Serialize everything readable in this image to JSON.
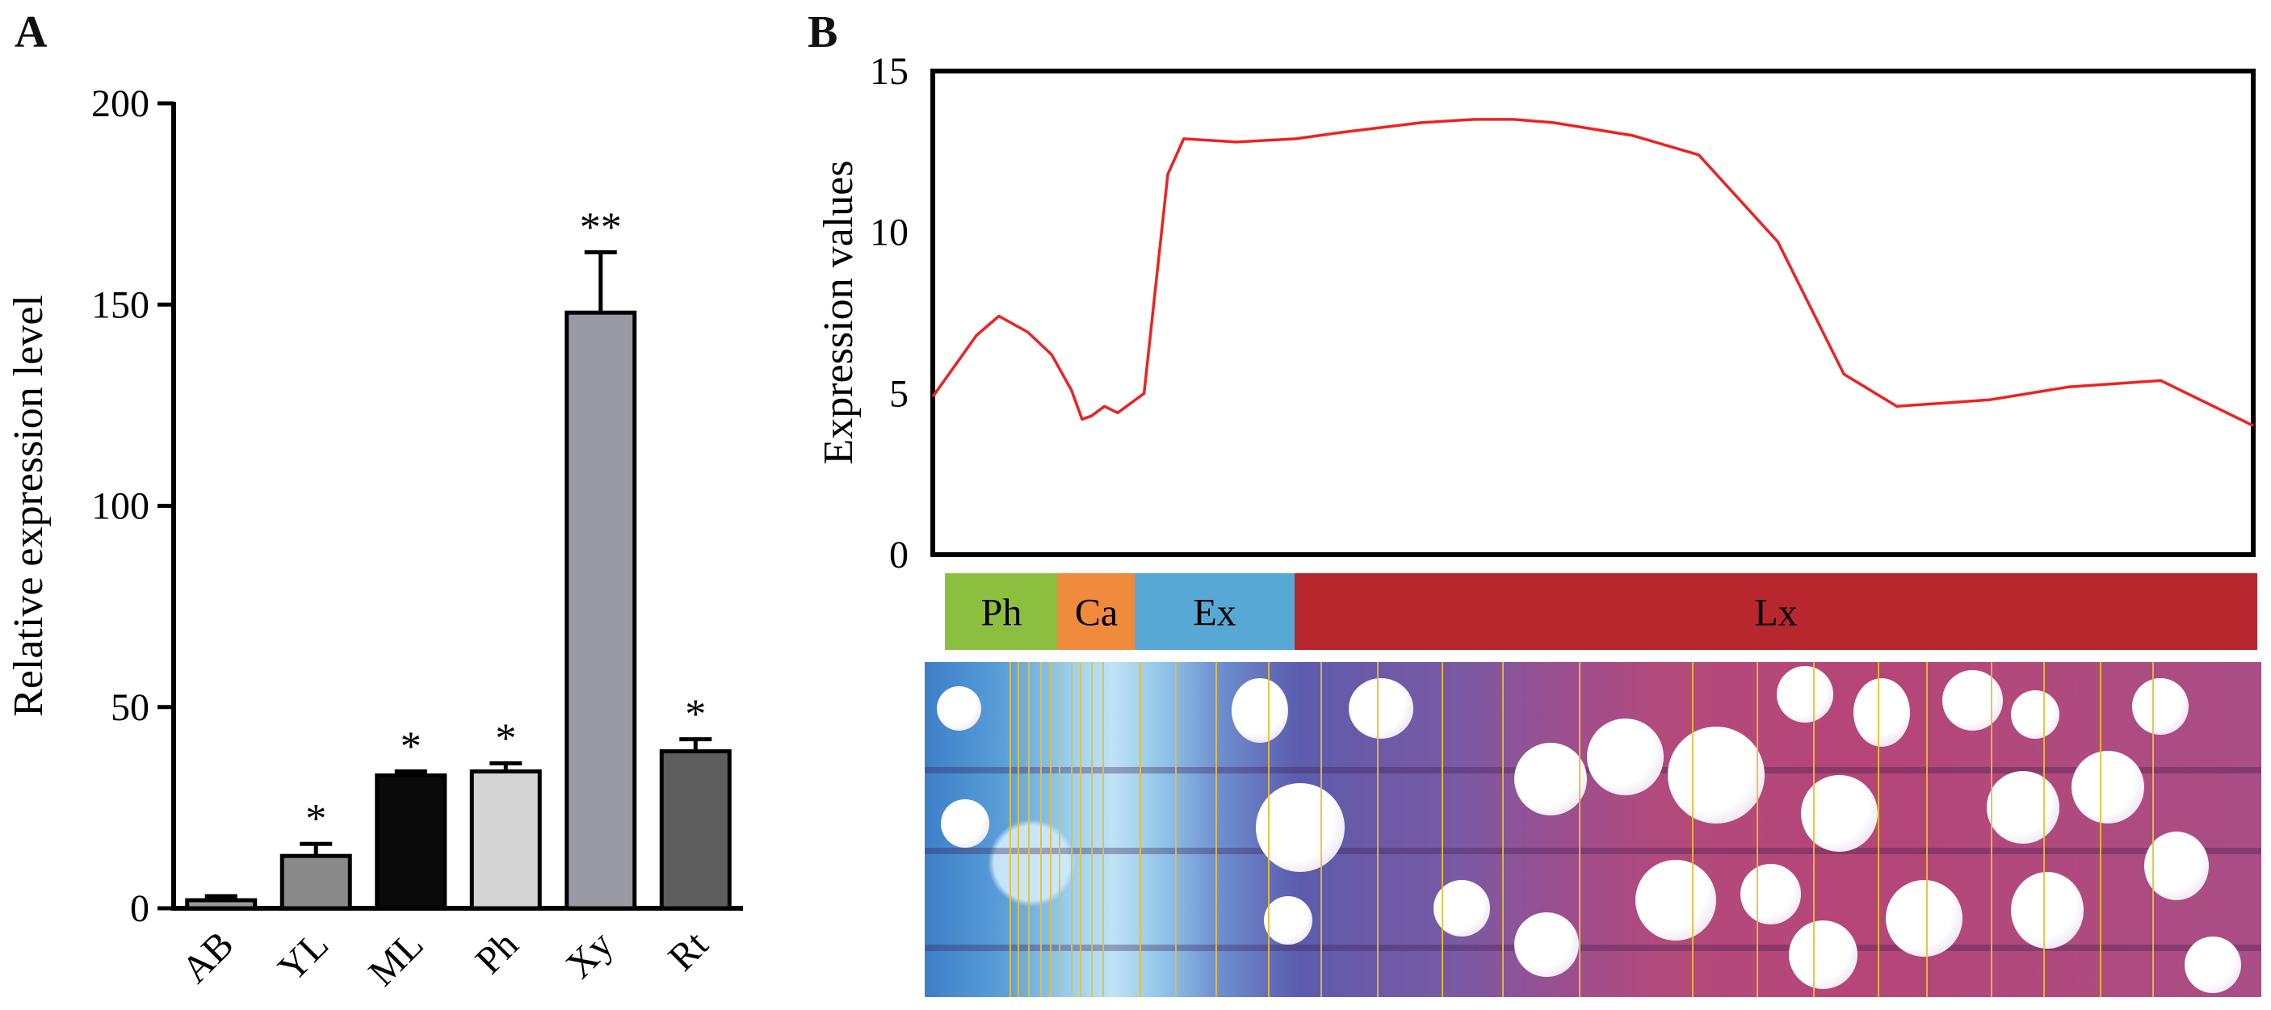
{
  "panel_labels": {
    "a": "A",
    "b": "B"
  },
  "chart_data": [
    {
      "type": "bar",
      "panel": "A",
      "title": "",
      "xlabel": "",
      "ylabel": "Relative expression level",
      "ylim": [
        0,
        200
      ],
      "yticks": [
        0,
        50,
        100,
        150,
        200
      ],
      "categories": [
        "AB",
        "YL",
        "ML",
        "Ph",
        "Xy",
        "Rt"
      ],
      "values": [
        2,
        13,
        33,
        34,
        148,
        39
      ],
      "errors": [
        1,
        3,
        1,
        2,
        15,
        3
      ],
      "significance": [
        "",
        "*",
        "*",
        "*",
        "**",
        "*"
      ],
      "colors": [
        "#9a9a9a",
        "#8a8a8a",
        "#0a0a0a",
        "#d4d4d4",
        "#999aa2",
        "#5e5e5e"
      ]
    },
    {
      "type": "line",
      "panel": "B",
      "title": "",
      "xlabel": "",
      "ylabel": "Expression values",
      "ylim": [
        0,
        15
      ],
      "yticks": [
        0,
        5,
        10,
        15
      ],
      "xlim": [
        0,
        100
      ],
      "x": [
        0,
        3.3,
        5,
        7.2,
        9,
        10.5,
        11.3,
        12,
        13,
        14,
        16,
        17.8,
        19,
        23,
        27.5,
        31,
        37,
        41,
        44,
        47,
        53,
        58,
        64,
        69,
        73,
        80,
        86,
        93,
        100
      ],
      "y": [
        4.9,
        6.8,
        7.4,
        6.9,
        6.2,
        5.1,
        4.2,
        4.3,
        4.6,
        4.4,
        5.0,
        11.8,
        12.9,
        12.8,
        12.9,
        13.1,
        13.4,
        13.5,
        13.5,
        13.4,
        13.0,
        12.4,
        9.7,
        5.6,
        4.6,
        4.8,
        5.2,
        5.4,
        4.0
      ],
      "series_color": "#ee2222",
      "regions": [
        {
          "label": "Ph",
          "color": "#8cbf3f"
        },
        {
          "label": "Ca",
          "color": "#f08a3c"
        },
        {
          "label": "Ex",
          "color": "#58a8d6"
        },
        {
          "label": "Lx",
          "color": "#b7272d"
        }
      ]
    }
  ]
}
